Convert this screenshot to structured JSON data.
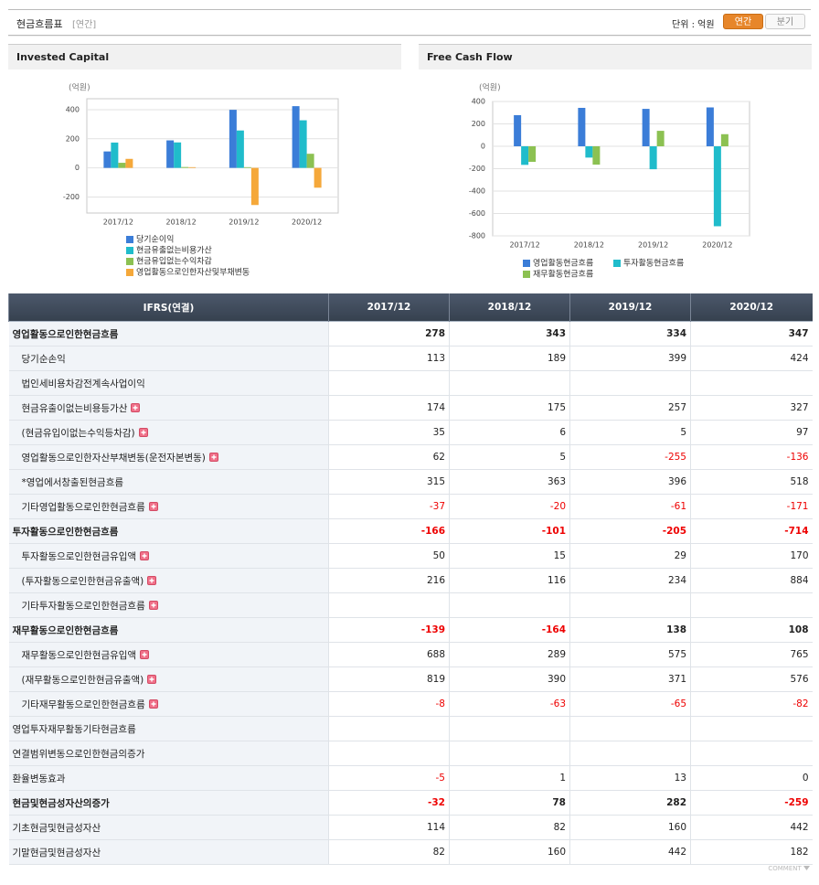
{
  "header": {
    "title": "현금흐름표",
    "subtitle": "[연간]",
    "unit": "단위 : 억원",
    "tabs": [
      "연간",
      "분기"
    ],
    "active_tab": 0
  },
  "chart_data": [
    {
      "type": "bar",
      "title": "Invested Capital",
      "y_label": "(억원)",
      "categories": [
        "2017/12",
        "2018/12",
        "2019/12",
        "2020/12"
      ],
      "series": [
        {
          "name": "당기순이익",
          "color": "#3b7dd8",
          "values": [
            113,
            189,
            399,
            424
          ]
        },
        {
          "name": "현금유출없는비용가산",
          "color": "#20bccb",
          "values": [
            174,
            175,
            257,
            327
          ]
        },
        {
          "name": "현금유입없는수익차감",
          "color": "#8cc152",
          "values": [
            35,
            6,
            5,
            97
          ]
        },
        {
          "name": "영업활동으로인한자산및부채변동",
          "color": "#f5a83a",
          "values": [
            62,
            5,
            -255,
            -136
          ]
        }
      ],
      "ylim": [
        -310,
        475
      ],
      "yticks": [
        400,
        200,
        0,
        -200
      ],
      "grid": true,
      "legend": "bottom"
    },
    {
      "type": "bar",
      "title": "Free Cash Flow",
      "y_label": "(억원)",
      "categories": [
        "2017/12",
        "2018/12",
        "2019/12",
        "2020/12"
      ],
      "series": [
        {
          "name": "영업활동현금흐름",
          "color": "#3b7dd8",
          "values": [
            278,
            343,
            334,
            347
          ]
        },
        {
          "name": "투자활동현금흐름",
          "color": "#20bccb",
          "values": [
            -166,
            -101,
            -205,
            -714
          ]
        },
        {
          "name": "재무활동현금흐름",
          "color": "#8cc152",
          "values": [
            -139,
            -164,
            138,
            108
          ]
        }
      ],
      "ylim": [
        -800,
        400
      ],
      "yticks": [
        400,
        200,
        0,
        -200,
        -400,
        -600,
        -800
      ],
      "grid": true,
      "legend": "bottom"
    }
  ],
  "table": {
    "columns": [
      "IFRS(연결)",
      "2017/12",
      "2018/12",
      "2019/12",
      "2020/12"
    ],
    "rows": [
      {
        "label": "영업활동으로인한현금흐름",
        "level": 0,
        "bold": true,
        "values": [
          278,
          343,
          334,
          347
        ]
      },
      {
        "label": "당기순손익",
        "level": 1,
        "values": [
          113,
          189,
          399,
          424
        ]
      },
      {
        "label": "법인세비용차감전계속사업이익",
        "level": 1,
        "values": [
          null,
          null,
          null,
          null
        ]
      },
      {
        "label": "현금유출이없는비용등가산",
        "level": 1,
        "expandable": true,
        "values": [
          174,
          175,
          257,
          327
        ]
      },
      {
        "label": "(현금유입이없는수익등차감)",
        "level": 1,
        "expandable": true,
        "values": [
          35,
          6,
          5,
          97
        ]
      },
      {
        "label": "영업활동으로인한자산부채변동(운전자본변동)",
        "level": 1,
        "expandable": true,
        "values": [
          62,
          5,
          -255,
          -136
        ]
      },
      {
        "label": "*영업에서창출된현금흐름",
        "level": 1,
        "values": [
          315,
          363,
          396,
          518
        ]
      },
      {
        "label": "기타영업활동으로인한현금흐름",
        "level": 1,
        "expandable": true,
        "values": [
          -37,
          -20,
          -61,
          -171
        ]
      },
      {
        "label": "투자활동으로인한현금흐름",
        "level": 0,
        "bold": true,
        "values": [
          -166,
          -101,
          -205,
          -714
        ]
      },
      {
        "label": "투자활동으로인한현금유입액",
        "level": 1,
        "expandable": true,
        "values": [
          50,
          15,
          29,
          170
        ]
      },
      {
        "label": "(투자활동으로인한현금유출액)",
        "level": 1,
        "expandable": true,
        "values": [
          216,
          116,
          234,
          884
        ]
      },
      {
        "label": "기타투자활동으로인한현금흐름",
        "level": 1,
        "expandable": true,
        "values": [
          null,
          null,
          null,
          null
        ]
      },
      {
        "label": "재무활동으로인한현금흐름",
        "level": 0,
        "bold": true,
        "values": [
          -139,
          -164,
          138,
          108
        ]
      },
      {
        "label": "재무활동으로인한현금유입액",
        "level": 1,
        "expandable": true,
        "values": [
          688,
          289,
          575,
          765
        ]
      },
      {
        "label": "(재무활동으로인한현금유출액)",
        "level": 1,
        "expandable": true,
        "values": [
          819,
          390,
          371,
          576
        ]
      },
      {
        "label": "기타재무활동으로인한현금흐름",
        "level": 1,
        "expandable": true,
        "values": [
          -8,
          -63,
          -65,
          -82
        ]
      },
      {
        "label": "영업투자재무활동기타현금흐름",
        "level": 0,
        "values": [
          null,
          null,
          null,
          null
        ]
      },
      {
        "label": "연결범위변동으로인한현금의증가",
        "level": 0,
        "values": [
          null,
          null,
          null,
          null
        ]
      },
      {
        "label": "환율변동효과",
        "level": 0,
        "values": [
          -5,
          1,
          13,
          0
        ]
      },
      {
        "label": "현금및현금성자산의증가",
        "level": 0,
        "bold": true,
        "values": [
          -32,
          78,
          282,
          -259
        ]
      },
      {
        "label": "기초현금및현금성자산",
        "level": 0,
        "values": [
          114,
          82,
          160,
          442
        ]
      },
      {
        "label": "기말현금및현금성자산",
        "level": 0,
        "values": [
          82,
          160,
          442,
          182
        ]
      }
    ]
  },
  "footer": "COMMENT"
}
